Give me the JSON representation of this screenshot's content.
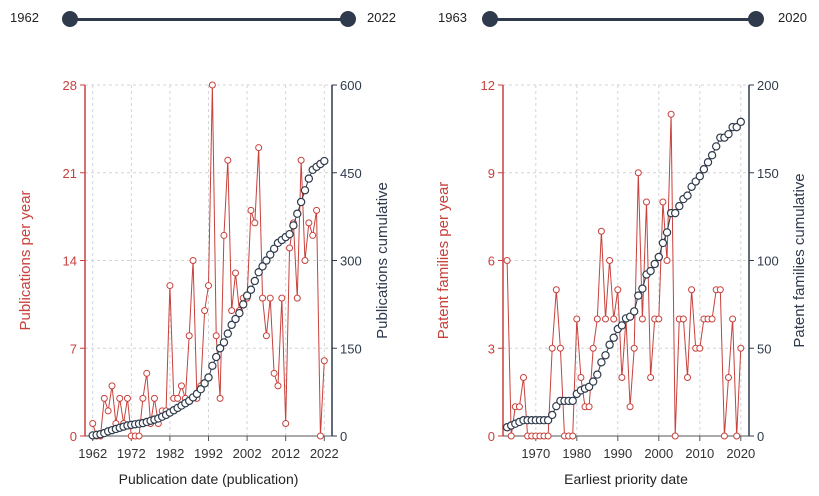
{
  "sliders": [
    {
      "min_label": "1962",
      "max_label": "2022"
    },
    {
      "min_label": "1963",
      "max_label": "2020"
    }
  ],
  "chart_data": [
    {
      "type": "line",
      "xlabel": "Publication date (publication)",
      "ylabel_left": "Publications per year",
      "ylabel_right": "Publications cumulative",
      "xlim": [
        1960,
        2024
      ],
      "ylim_left": [
        0,
        28
      ],
      "ylim_right": [
        0,
        600
      ],
      "xticks": [
        1962,
        1972,
        1982,
        1992,
        2002,
        2012,
        2022
      ],
      "yticks_left": [
        0,
        7,
        14,
        21,
        28
      ],
      "yticks_right": [
        0,
        150,
        300,
        450,
        600
      ],
      "grid": true,
      "colors": {
        "left": "#c8413c",
        "right": "#2f3b4c"
      },
      "x": [
        1962,
        1963,
        1964,
        1965,
        1966,
        1967,
        1968,
        1969,
        1970,
        1971,
        1972,
        1973,
        1974,
        1975,
        1976,
        1977,
        1978,
        1979,
        1980,
        1981,
        1982,
        1983,
        1984,
        1985,
        1986,
        1987,
        1988,
        1989,
        1990,
        1991,
        1992,
        1993,
        1994,
        1995,
        1996,
        1997,
        1998,
        1999,
        2000,
        2001,
        2002,
        2003,
        2004,
        2005,
        2006,
        2007,
        2008,
        2009,
        2010,
        2011,
        2012,
        2013,
        2014,
        2015,
        2016,
        2017,
        2018,
        2019,
        2020,
        2021,
        2022
      ],
      "series": [
        {
          "axis": "left",
          "values": [
            1,
            0,
            0,
            3,
            2,
            4,
            1,
            3,
            1,
            3,
            0,
            0,
            0,
            3,
            5,
            1,
            3,
            1,
            2,
            2,
            12,
            3,
            3,
            4,
            3,
            8,
            14,
            3,
            4,
            10,
            12,
            28,
            8,
            3,
            16,
            22,
            10,
            13,
            10,
            11,
            11,
            18,
            17,
            23,
            11,
            8,
            11,
            5,
            4,
            11,
            1,
            15,
            17,
            11,
            22,
            14,
            17,
            16,
            18,
            0,
            6
          ]
        },
        {
          "axis": "right",
          "values": [
            1,
            2,
            3,
            5,
            8,
            10,
            12,
            14,
            16,
            18,
            19,
            20,
            21,
            22,
            24,
            26,
            28,
            30,
            33,
            36,
            40,
            44,
            48,
            52,
            56,
            60,
            66,
            72,
            80,
            90,
            100,
            120,
            135,
            150,
            160,
            175,
            190,
            200,
            210,
            225,
            240,
            250,
            265,
            280,
            290,
            300,
            310,
            320,
            330,
            335,
            340,
            345,
            360,
            380,
            400,
            420,
            440,
            455,
            460,
            465,
            470
          ]
        }
      ]
    },
    {
      "type": "line",
      "xlabel": "Earliest priority date",
      "ylabel_left": "Patent families per year",
      "ylabel_right": "Patent families cumulative",
      "xlim": [
        1962,
        2022
      ],
      "ylim_left": [
        0,
        12
      ],
      "ylim_right": [
        0,
        200
      ],
      "xticks": [
        1970,
        1980,
        1990,
        2000,
        2010,
        2020
      ],
      "yticks_left": [
        0,
        3,
        6,
        9,
        12
      ],
      "yticks_right": [
        0,
        50,
        100,
        150,
        200
      ],
      "grid": true,
      "colors": {
        "left": "#c8413c",
        "right": "#2f3b4c"
      },
      "x": [
        1963,
        1964,
        1965,
        1966,
        1967,
        1968,
        1969,
        1970,
        1971,
        1972,
        1973,
        1974,
        1975,
        1976,
        1977,
        1978,
        1979,
        1980,
        1981,
        1982,
        1983,
        1984,
        1985,
        1986,
        1987,
        1988,
        1989,
        1990,
        1991,
        1992,
        1993,
        1994,
        1995,
        1996,
        1997,
        1998,
        1999,
        2000,
        2001,
        2002,
        2003,
        2004,
        2005,
        2006,
        2007,
        2008,
        2009,
        2010,
        2011,
        2012,
        2013,
        2014,
        2015,
        2016,
        2017,
        2018,
        2019,
        2020
      ],
      "series": [
        {
          "axis": "left",
          "values": [
            6,
            0,
            1,
            1,
            2,
            0,
            0,
            0,
            0,
            0,
            0,
            3,
            5,
            3,
            0,
            0,
            0,
            4,
            2,
            1,
            1,
            3,
            4,
            7,
            4,
            6,
            4,
            5,
            2,
            4,
            1,
            3,
            9,
            4,
            8,
            2,
            4,
            4,
            8,
            6,
            11,
            0,
            4,
            4,
            2,
            5,
            3,
            3,
            4,
            4,
            4,
            5,
            5,
            0,
            2,
            4,
            0,
            3
          ]
        },
        {
          "axis": "right",
          "values": [
            5,
            6,
            7,
            8,
            9,
            9,
            9,
            9,
            9,
            9,
            9,
            12,
            17,
            20,
            20,
            20,
            20,
            24,
            26,
            27,
            28,
            31,
            35,
            42,
            46,
            52,
            56,
            61,
            63,
            67,
            68,
            71,
            80,
            84,
            92,
            94,
            98,
            102,
            110,
            116,
            127,
            127,
            131,
            135,
            137,
            142,
            145,
            148,
            152,
            156,
            160,
            165,
            170,
            170,
            172,
            176,
            176,
            179
          ]
        }
      ]
    }
  ]
}
